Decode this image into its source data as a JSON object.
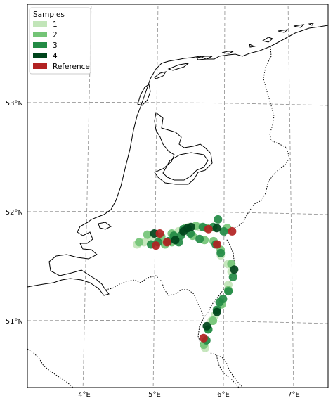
{
  "map": {
    "legend": {
      "title": "Samples",
      "placement": "top-left",
      "items": [
        {
          "label": "1",
          "color": "#c2e5b9"
        },
        {
          "label": "2",
          "color": "#73c476"
        },
        {
          "label": "3",
          "color": "#238b45"
        },
        {
          "label": "4",
          "color": "#00441b"
        },
        {
          "label": "Reference",
          "color": "#b22222"
        }
      ]
    },
    "lon_ticks": [
      "4°E",
      "5°E",
      "6°E",
      "7°E"
    ],
    "lat_ticks": [
      "53°N",
      "52°N",
      "51°N"
    ],
    "extent": {
      "lon": [
        3.15,
        7.5
      ],
      "lat": [
        50.4,
        53.9
      ]
    },
    "gridlines": "dashed",
    "border_style": "dotted"
  },
  "chart_data": {
    "type": "scatter",
    "title": "",
    "xlabel": "",
    "ylabel": "",
    "series": [
      {
        "name": "1",
        "color": "#c2e5b9",
        "points": [
          [
            4.75,
            51.7
          ],
          [
            4.85,
            51.72
          ],
          [
            4.95,
            51.74
          ],
          [
            5.35,
            51.82
          ],
          [
            5.5,
            51.86
          ],
          [
            5.95,
            51.6
          ],
          [
            6.05,
            51.52
          ],
          [
            6.05,
            51.33
          ],
          [
            5.85,
            51.05
          ],
          [
            5.7,
            50.75
          ],
          [
            5.8,
            51.0
          ],
          [
            6.1,
            51.45
          ],
          [
            5.65,
            51.86
          ]
        ]
      },
      {
        "name": "2",
        "color": "#73c476",
        "points": [
          [
            4.78,
            51.72
          ],
          [
            4.9,
            51.79
          ],
          [
            5.1,
            51.77
          ],
          [
            5.25,
            51.8
          ],
          [
            5.45,
            51.85
          ],
          [
            5.6,
            51.87
          ],
          [
            5.75,
            51.85
          ],
          [
            6.05,
            51.85
          ],
          [
            5.85,
            51.73
          ],
          [
            5.95,
            51.65
          ],
          [
            6.1,
            51.52
          ],
          [
            6.05,
            51.28
          ],
          [
            5.95,
            51.15
          ],
          [
            5.82,
            51.0
          ],
          [
            5.75,
            50.92
          ],
          [
            5.68,
            50.78
          ],
          [
            5.25,
            51.72
          ],
          [
            5.15,
            51.7
          ],
          [
            5.55,
            51.78
          ],
          [
            5.72,
            51.74
          ]
        ]
      },
      {
        "name": "3",
        "color": "#238b45",
        "points": [
          [
            4.95,
            51.7
          ],
          [
            5.05,
            51.72
          ],
          [
            5.2,
            51.73
          ],
          [
            5.28,
            51.78
          ],
          [
            5.38,
            51.78
          ],
          [
            5.42,
            51.84
          ],
          [
            5.52,
            51.8
          ],
          [
            5.7,
            51.86
          ],
          [
            5.85,
            51.86
          ],
          [
            5.92,
            51.93
          ],
          [
            6.0,
            51.82
          ],
          [
            5.88,
            51.7
          ],
          [
            5.95,
            51.62
          ],
          [
            6.12,
            51.4
          ],
          [
            6.05,
            51.27
          ],
          [
            5.97,
            51.2
          ],
          [
            5.92,
            51.17
          ],
          [
            5.88,
            51.1
          ],
          [
            5.75,
            50.92
          ],
          [
            5.72,
            50.82
          ],
          [
            5.65,
            51.75
          ],
          [
            5.35,
            51.72
          ]
        ]
      },
      {
        "name": "4",
        "color": "#00441b",
        "points": [
          [
            5.0,
            51.8
          ],
          [
            5.42,
            51.82
          ],
          [
            5.48,
            51.85
          ],
          [
            5.53,
            51.86
          ],
          [
            5.9,
            51.85
          ],
          [
            6.14,
            51.47
          ],
          [
            5.88,
            51.08
          ],
          [
            5.73,
            50.95
          ],
          [
            5.3,
            51.74
          ]
        ]
      },
      {
        "name": "Reference",
        "color": "#b22222",
        "points": [
          [
            5.08,
            51.8
          ],
          [
            5.02,
            51.69
          ],
          [
            5.18,
            51.72
          ],
          [
            5.78,
            51.84
          ],
          [
            6.12,
            51.82
          ],
          [
            5.9,
            51.7
          ],
          [
            5.68,
            50.84
          ]
        ]
      }
    ]
  }
}
